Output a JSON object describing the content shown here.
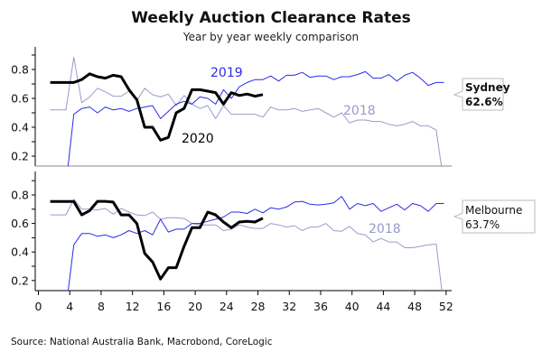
{
  "title": "Weekly Auction Clearance Rates",
  "subtitle": "Year by year weekly comparison",
  "source": "Source: National Australia Bank, Macrobond, CoreLogic",
  "colors": {
    "2020": "#000000",
    "2019": "#2b2bea",
    "2018": "#9a9acb"
  },
  "chart_data": [
    {
      "type": "line",
      "panel": "Sydney",
      "callout": {
        "name": "Sydney",
        "value": "62.6%"
      },
      "xlim": [
        0,
        52
      ],
      "ylim": [
        0.13,
        0.96
      ],
      "yticks": [
        "0.8",
        "0.6",
        "0.4",
        "0.2"
      ],
      "series": [
        {
          "name": "2020",
          "x": [
            1,
            2,
            3,
            4,
            5,
            6,
            7,
            8,
            9,
            10,
            11,
            12,
            13,
            14,
            15,
            16,
            17,
            18,
            19,
            20,
            21,
            22,
            23,
            24,
            25,
            26,
            27,
            28
          ],
          "values": [
            0.71,
            0.71,
            0.71,
            0.71,
            0.73,
            0.77,
            0.75,
            0.74,
            0.76,
            0.75,
            0.66,
            0.59,
            0.4,
            0.4,
            0.31,
            0.33,
            0.5,
            0.53,
            0.66,
            0.66,
            0.65,
            0.64,
            0.56,
            0.64,
            0.62,
            0.63,
            0.615,
            0.626
          ]
        },
        {
          "name": "2019",
          "x": [
            3,
            4,
            5,
            6,
            7,
            8,
            9,
            10,
            11,
            12,
            13,
            14,
            15,
            16,
            17,
            18,
            19,
            20,
            21,
            22,
            23,
            24,
            25,
            26,
            27,
            28,
            29,
            30,
            31,
            32,
            33,
            34,
            35,
            36,
            37,
            38,
            39,
            40,
            41,
            42,
            43,
            44,
            45,
            46,
            47,
            48,
            49,
            50,
            51
          ],
          "values": [
            0.0,
            0.49,
            0.53,
            0.54,
            0.5,
            0.54,
            0.52,
            0.53,
            0.51,
            0.53,
            0.54,
            0.55,
            0.46,
            0.51,
            0.56,
            0.58,
            0.56,
            0.61,
            0.6,
            0.56,
            0.66,
            0.6,
            0.68,
            0.71,
            0.73,
            0.73,
            0.755,
            0.72,
            0.76,
            0.76,
            0.78,
            0.745,
            0.755,
            0.755,
            0.73,
            0.75,
            0.75,
            0.765,
            0.785,
            0.74,
            0.74,
            0.765,
            0.72,
            0.76,
            0.78,
            0.74,
            0.69,
            0.71,
            0.71
          ]
        },
        {
          "name": "2018",
          "x": [
            1,
            2,
            3,
            4,
            5,
            6,
            7,
            8,
            9,
            10,
            11,
            12,
            13,
            14,
            15,
            16,
            17,
            18,
            19,
            20,
            21,
            22,
            23,
            24,
            25,
            26,
            27,
            28,
            29,
            30,
            31,
            32,
            33,
            34,
            35,
            36,
            37,
            38,
            39,
            40,
            41,
            42,
            43,
            44,
            45,
            46,
            47,
            48,
            49,
            50,
            51
          ],
          "values": [
            0.52,
            0.52,
            0.52,
            0.885,
            0.57,
            0.61,
            0.67,
            0.645,
            0.615,
            0.615,
            0.65,
            0.585,
            0.67,
            0.625,
            0.61,
            0.63,
            0.55,
            0.62,
            0.56,
            0.53,
            0.55,
            0.46,
            0.55,
            0.49,
            0.49,
            0.49,
            0.49,
            0.47,
            0.54,
            0.52,
            0.52,
            0.53,
            0.51,
            0.52,
            0.53,
            0.5,
            0.47,
            0.5,
            0.43,
            0.45,
            0.45,
            0.44,
            0.44,
            0.42,
            0.41,
            0.42,
            0.44,
            0.41,
            0.41,
            0.38,
            0.0
          ]
        }
      ],
      "labels": {
        "2019": "2019",
        "2020": "2020",
        "2018": "2018"
      }
    },
    {
      "type": "line",
      "panel": "Melbourne",
      "callout": {
        "name": "Melbourne",
        "value": "63.7%"
      },
      "xlim": [
        0,
        52
      ],
      "ylim": [
        0.14,
        0.96
      ],
      "xticks": [
        "0",
        "4",
        "8",
        "12",
        "16",
        "20",
        "24",
        "28",
        "32",
        "36",
        "40",
        "44",
        "48",
        "52"
      ],
      "yticks": [
        "0.8",
        "0.6",
        "0.4",
        "0.2"
      ],
      "series": [
        {
          "name": "2020",
          "x": [
            1,
            2,
            3,
            4,
            5,
            6,
            7,
            8,
            9,
            10,
            11,
            12,
            13,
            14,
            15,
            16,
            17,
            18,
            19,
            20,
            21,
            22,
            23,
            24,
            25,
            26,
            27,
            28
          ],
          "values": [
            0.754,
            0.754,
            0.754,
            0.754,
            0.66,
            0.69,
            0.755,
            0.755,
            0.75,
            0.66,
            0.66,
            0.6,
            0.39,
            0.33,
            0.21,
            0.29,
            0.29,
            0.44,
            0.57,
            0.57,
            0.68,
            0.66,
            0.61,
            0.57,
            0.61,
            0.615,
            0.61,
            0.637
          ]
        },
        {
          "name": "2019",
          "x": [
            3,
            4,
            5,
            6,
            7,
            8,
            9,
            10,
            11,
            12,
            13,
            14,
            15,
            16,
            17,
            18,
            19,
            20,
            21,
            22,
            23,
            24,
            25,
            26,
            27,
            28,
            29,
            30,
            31,
            32,
            33,
            34,
            35,
            36,
            37,
            38,
            39,
            40,
            41,
            42,
            43,
            44,
            45,
            46,
            47,
            48,
            49,
            50,
            51
          ],
          "values": [
            0.0,
            0.45,
            0.53,
            0.53,
            0.51,
            0.52,
            0.5,
            0.52,
            0.55,
            0.53,
            0.55,
            0.52,
            0.63,
            0.54,
            0.56,
            0.56,
            0.6,
            0.6,
            0.615,
            0.63,
            0.645,
            0.68,
            0.68,
            0.67,
            0.7,
            0.675,
            0.71,
            0.7,
            0.715,
            0.75,
            0.755,
            0.735,
            0.73,
            0.735,
            0.745,
            0.79,
            0.7,
            0.74,
            0.725,
            0.74,
            0.685,
            0.71,
            0.735,
            0.695,
            0.74,
            0.725,
            0.685,
            0.74,
            0.74
          ]
        },
        {
          "name": "2018",
          "x": [
            1,
            2,
            3,
            4,
            5,
            6,
            7,
            8,
            9,
            10,
            11,
            12,
            13,
            14,
            15,
            16,
            17,
            18,
            19,
            20,
            21,
            22,
            23,
            24,
            25,
            26,
            27,
            28,
            29,
            30,
            31,
            32,
            33,
            34,
            35,
            36,
            37,
            38,
            39,
            40,
            41,
            42,
            43,
            44,
            45,
            46,
            47,
            48,
            49,
            50,
            51
          ],
          "values": [
            0.66,
            0.66,
            0.66,
            0.77,
            0.7,
            0.7,
            0.695,
            0.705,
            0.665,
            0.705,
            0.68,
            0.66,
            0.655,
            0.68,
            0.63,
            0.64,
            0.64,
            0.635,
            0.6,
            0.59,
            0.59,
            0.59,
            0.55,
            0.56,
            0.59,
            0.575,
            0.565,
            0.565,
            0.6,
            0.59,
            0.575,
            0.585,
            0.55,
            0.575,
            0.575,
            0.6,
            0.55,
            0.545,
            0.58,
            0.53,
            0.52,
            0.47,
            0.495,
            0.47,
            0.47,
            0.43,
            0.43,
            0.44,
            0.45,
            0.455,
            0.0
          ]
        }
      ],
      "labels": {
        "2018": "2018"
      }
    }
  ]
}
